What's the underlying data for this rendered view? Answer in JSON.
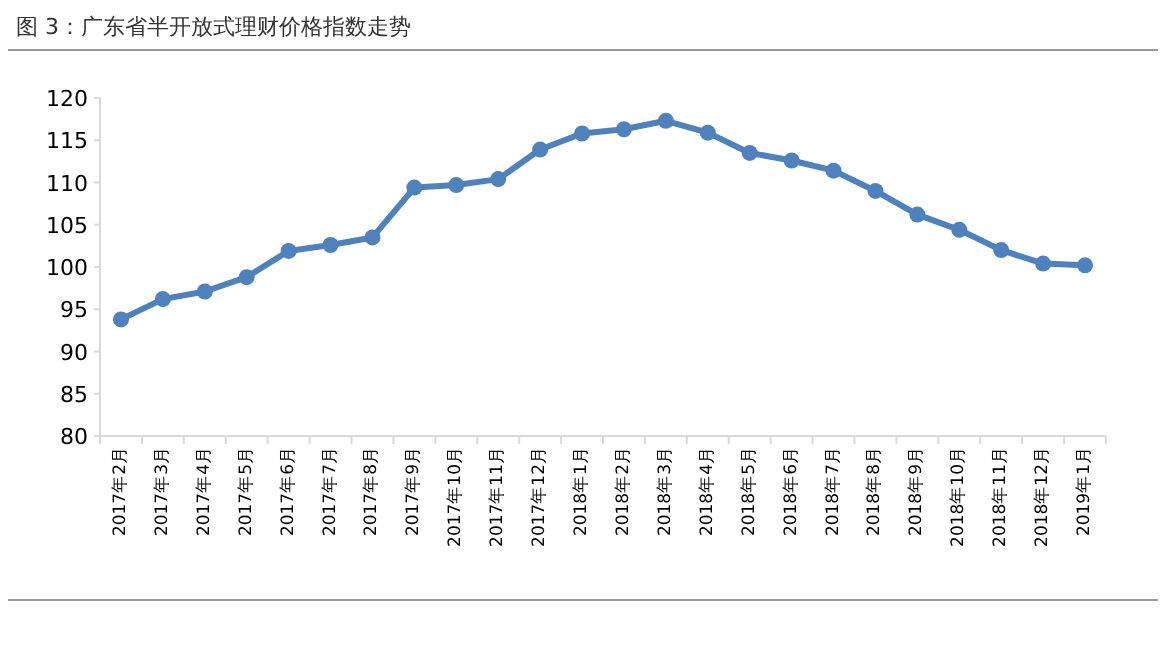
{
  "chart_data": {
    "type": "line",
    "title": "图 3：广东省半开放式理财价格指数走势",
    "categories": [
      "2017年2月",
      "2017年3月",
      "2017年4月",
      "2017年5月",
      "2017年6月",
      "2017年7月",
      "2017年8月",
      "2017年9月",
      "2017年10月",
      "2017年11月",
      "2017年12月",
      "2018年1月",
      "2018年2月",
      "2018年3月",
      "2018年4月",
      "2018年5月",
      "2018年6月",
      "2018年7月",
      "2018年8月",
      "2018年9月",
      "2018年10月",
      "2018年11月",
      "2018年12月",
      "2019年1月"
    ],
    "series": [
      {
        "color": "#4f81bd",
        "values": [
          93.8,
          96.2,
          97.1,
          98.8,
          101.9,
          102.6,
          103.5,
          109.4,
          109.7,
          110.4,
          113.9,
          115.8,
          116.3,
          117.3,
          115.9,
          113.5,
          112.6,
          111.4,
          109.0,
          106.2,
          104.4,
          102.0,
          100.4,
          100.2
        ]
      }
    ],
    "ylim": [
      80,
      120
    ],
    "yticks": [
      80,
      85,
      90,
      95,
      100,
      105,
      110,
      115,
      120
    ],
    "grid": false,
    "marker": "circle",
    "line_style": "solid"
  }
}
